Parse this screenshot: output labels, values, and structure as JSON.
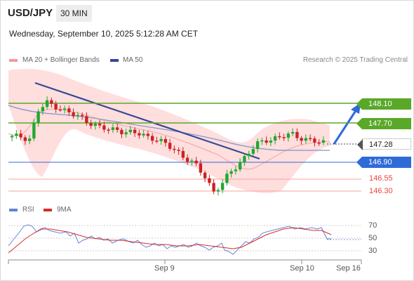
{
  "header": {
    "symbol": "USD/JPY",
    "timeframe": "30 MIN",
    "datetime": "Wednesday, September 10, 2025 5:12:28 AM CET"
  },
  "legend": {
    "ma20": "MA 20 + Bollinger Bands",
    "ma50": "MA 50",
    "credit": "Research © 2025 Trading Central"
  },
  "levels": {
    "r2": "148.10",
    "r1": "147.70",
    "last": "147.28",
    "pivot": "146.90",
    "s1": "146.55",
    "s2": "146.30"
  },
  "rsi_legend": {
    "rsi": "RSI",
    "ma": "9MA"
  },
  "rsi_ticks": [
    "70",
    "50",
    "30"
  ],
  "x_axis": {
    "sep9": "Sep 9",
    "sep10": "Sep 10",
    "sep16": "Sep 16"
  },
  "colors": {
    "resistance": "#5aa828",
    "pivot": "#2f6ad9",
    "support": "#e8453c",
    "trendline": "#344a94",
    "ma50": "#344a94",
    "bollinger": "#ffd8d8",
    "up_candle": "#22a830",
    "down_candle": "#cc2222"
  },
  "chart_data": {
    "type": "candlestick",
    "symbol": "USD/JPY",
    "interval": "30 MIN",
    "price_levels": [
      148.1,
      147.7,
      147.28,
      146.9,
      146.55,
      146.3
    ],
    "last_price": 147.28,
    "close_path": [
      147.4,
      147.42,
      147.38,
      147.95,
      148.1,
      148.05,
      147.95,
      147.85,
      147.8,
      147.7,
      147.6,
      147.55,
      147.58,
      147.5,
      147.48,
      147.45,
      147.4,
      147.3,
      147.2,
      147.1,
      146.95,
      146.8,
      146.6,
      146.3,
      146.45,
      146.7,
      146.9,
      147.1,
      147.25,
      147.35,
      147.4,
      147.42,
      147.45,
      147.4,
      147.35,
      147.28
    ],
    "rsi_ticks": [
      70,
      50,
      30
    ]
  }
}
